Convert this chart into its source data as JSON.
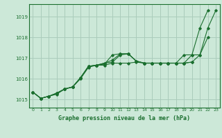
{
  "background_color": "#cce8d8",
  "grid_color": "#aaccbb",
  "line_color": "#1a6e2e",
  "title": "Graphe pression niveau de la mer (hPa)",
  "xlim": [
    -0.5,
    23.5
  ],
  "ylim": [
    1014.6,
    1019.6
  ],
  "yticks": [
    1015,
    1016,
    1017,
    1018,
    1019
  ],
  "xticks": [
    0,
    1,
    2,
    3,
    4,
    5,
    6,
    7,
    8,
    9,
    10,
    11,
    12,
    13,
    14,
    15,
    16,
    17,
    18,
    19,
    20,
    21,
    22,
    23
  ],
  "series": [
    [
      1015.35,
      1015.05,
      1015.15,
      1015.25,
      1015.5,
      1015.6,
      1016.05,
      1016.6,
      1016.65,
      1016.65,
      1016.75,
      1016.75,
      1016.75,
      1016.8,
      1016.75,
      1016.75,
      1016.75,
      1016.75,
      1016.75,
      1016.75,
      1016.8,
      1017.15,
      1018.45,
      1019.3
    ],
    [
      1015.35,
      1015.05,
      1015.15,
      1015.3,
      1015.5,
      1015.6,
      1016.0,
      1016.55,
      1016.65,
      1016.7,
      1017.15,
      1017.2,
      1017.2,
      1016.85,
      1016.75,
      1016.75,
      1016.75,
      1016.75,
      1016.75,
      1016.75,
      1017.15,
      1018.45,
      1019.3,
      null
    ],
    [
      1015.35,
      1015.05,
      1015.15,
      1015.3,
      1015.5,
      1015.6,
      1016.05,
      1016.6,
      1016.65,
      1016.75,
      1016.8,
      1017.15,
      1017.2,
      1016.85,
      1016.75,
      1016.75,
      1016.75,
      1016.75,
      1016.75,
      1017.15,
      1017.15,
      1017.15,
      1018.0,
      null
    ],
    [
      1015.35,
      1015.05,
      1015.15,
      1015.3,
      1015.5,
      1015.6,
      1016.05,
      1016.6,
      1016.65,
      1016.75,
      1016.9,
      1017.2,
      1017.2,
      1016.85,
      1016.75,
      1016.75,
      1016.75,
      1016.75,
      1016.75,
      1016.75,
      1016.8,
      null,
      null,
      null
    ]
  ]
}
